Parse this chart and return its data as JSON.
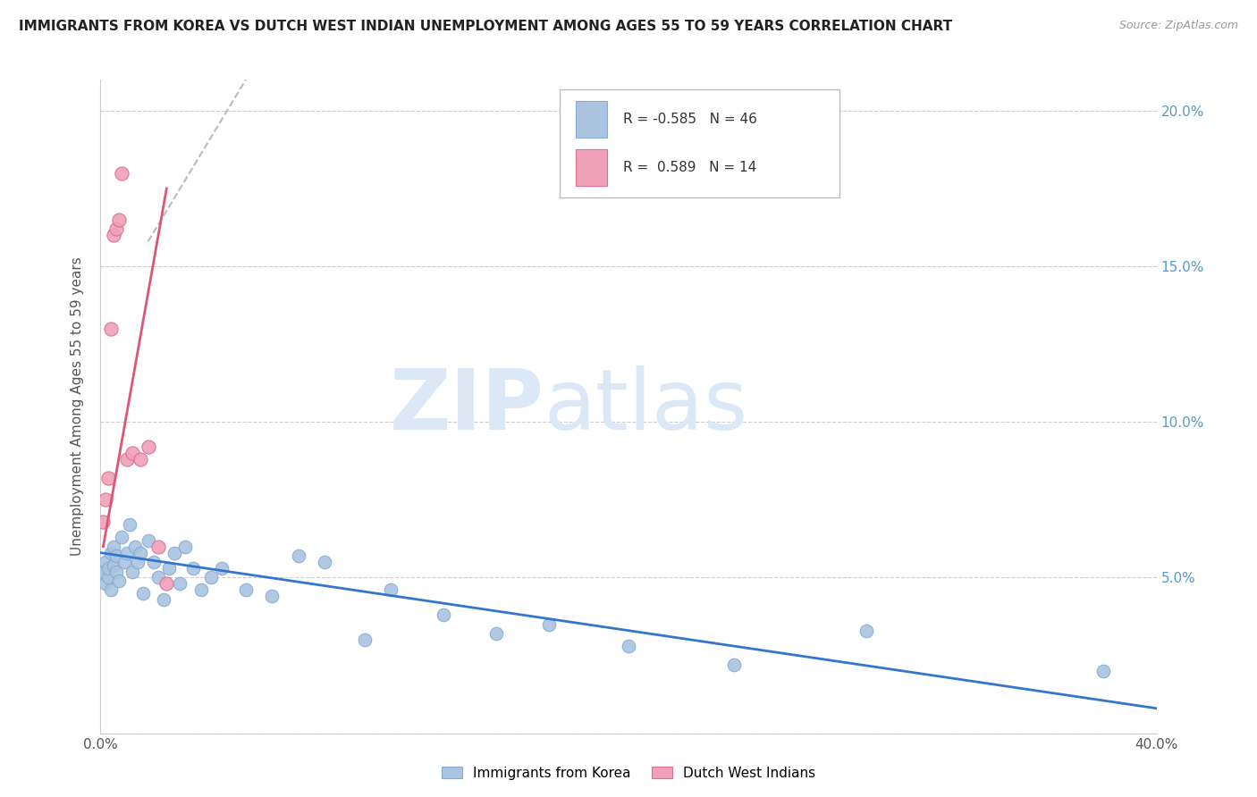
{
  "title": "IMMIGRANTS FROM KOREA VS DUTCH WEST INDIAN UNEMPLOYMENT AMONG AGES 55 TO 59 YEARS CORRELATION CHART",
  "source": "Source: ZipAtlas.com",
  "ylabel": "Unemployment Among Ages 55 to 59 years",
  "xlim": [
    0,
    0.4
  ],
  "ylim": [
    0,
    0.21
  ],
  "blue_color": "#aac4e0",
  "blue_edge": "#88aad0",
  "pink_color": "#f0a0b8",
  "pink_edge": "#d87090",
  "trend_blue": "#3377cc",
  "trend_pink": "#dd5577",
  "trend_dashed_color": "#bbbbbb",
  "korea_x": [
    0.001,
    0.002,
    0.002,
    0.003,
    0.003,
    0.004,
    0.004,
    0.005,
    0.005,
    0.006,
    0.006,
    0.007,
    0.008,
    0.009,
    0.01,
    0.011,
    0.012,
    0.013,
    0.014,
    0.015,
    0.016,
    0.018,
    0.02,
    0.022,
    0.024,
    0.026,
    0.028,
    0.03,
    0.032,
    0.035,
    0.038,
    0.042,
    0.046,
    0.055,
    0.065,
    0.075,
    0.085,
    0.1,
    0.11,
    0.13,
    0.15,
    0.17,
    0.2,
    0.24,
    0.29,
    0.38
  ],
  "korea_y": [
    0.052,
    0.048,
    0.055,
    0.05,
    0.053,
    0.046,
    0.058,
    0.054,
    0.06,
    0.052,
    0.057,
    0.049,
    0.063,
    0.055,
    0.058,
    0.067,
    0.052,
    0.06,
    0.055,
    0.058,
    0.045,
    0.062,
    0.055,
    0.05,
    0.043,
    0.053,
    0.058,
    0.048,
    0.06,
    0.053,
    0.046,
    0.05,
    0.053,
    0.046,
    0.044,
    0.057,
    0.055,
    0.03,
    0.046,
    0.038,
    0.032,
    0.035,
    0.028,
    0.022,
    0.033,
    0.02
  ],
  "dutch_x": [
    0.001,
    0.002,
    0.003,
    0.004,
    0.005,
    0.006,
    0.007,
    0.008,
    0.01,
    0.012,
    0.015,
    0.018,
    0.022,
    0.025
  ],
  "dutch_y": [
    0.068,
    0.075,
    0.082,
    0.13,
    0.16,
    0.162,
    0.165,
    0.18,
    0.088,
    0.09,
    0.088,
    0.092,
    0.06,
    0.048
  ],
  "blue_trendline_x": [
    0.0,
    0.4
  ],
  "blue_trendline_y": [
    0.058,
    0.008
  ],
  "pink_trendline_x": [
    0.001,
    0.025
  ],
  "pink_trendline_y": [
    0.06,
    0.175
  ],
  "dashed_trendline_x": [
    0.018,
    0.055
  ],
  "dashed_trendline_y": [
    0.158,
    0.21
  ]
}
